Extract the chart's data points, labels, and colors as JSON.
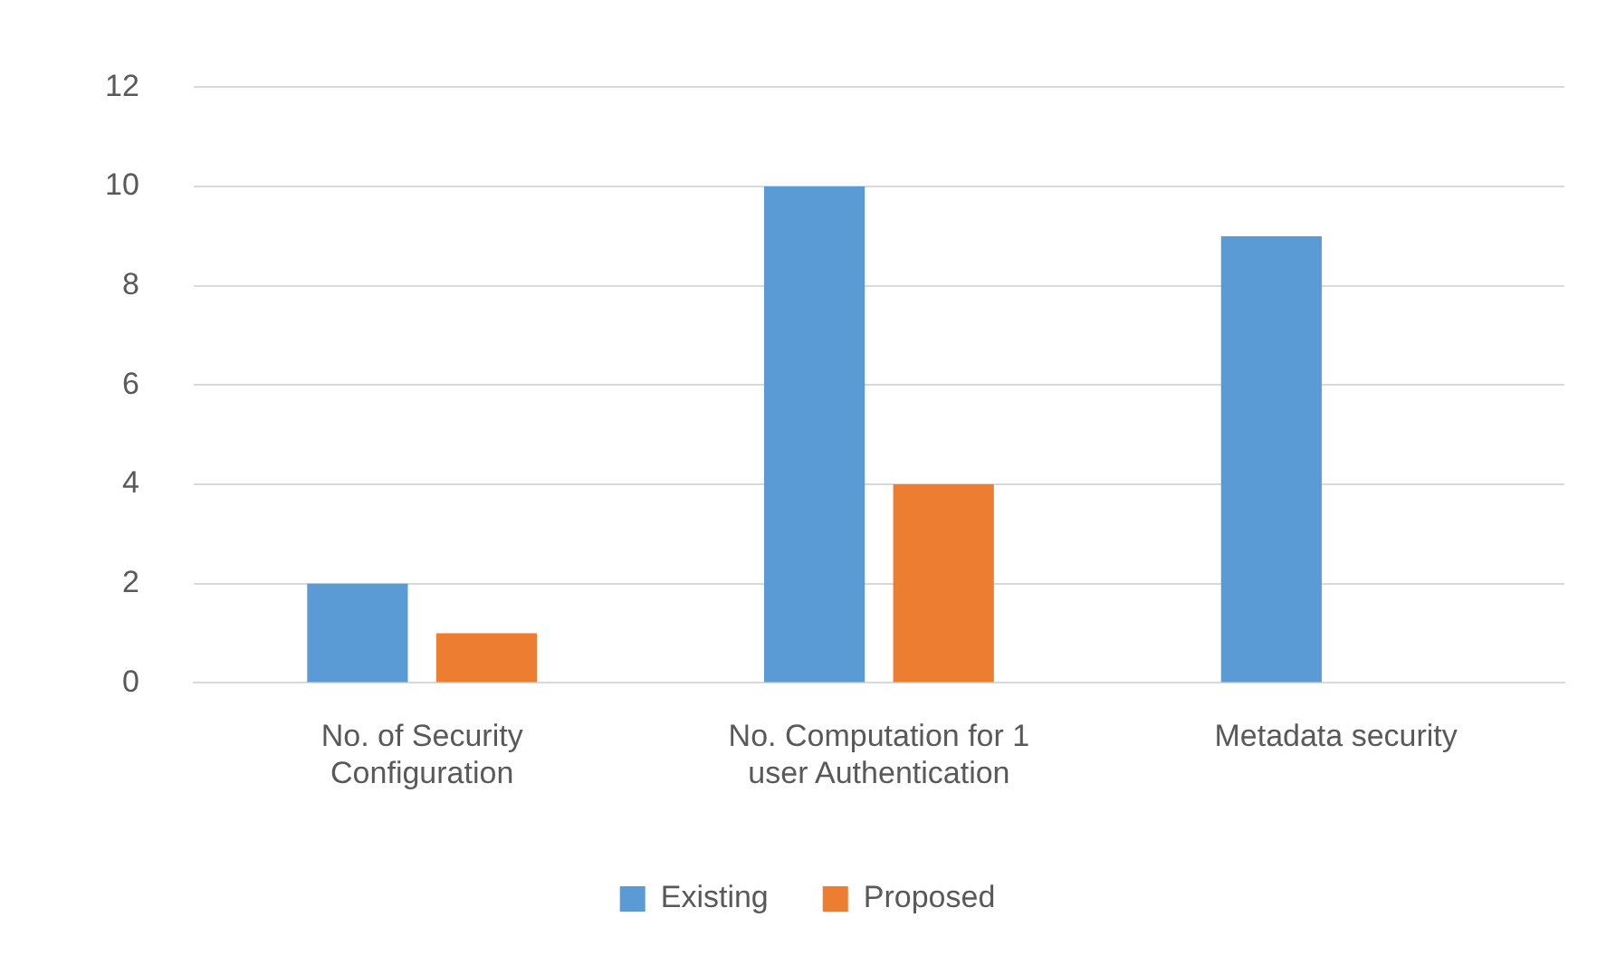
{
  "chart_data": {
    "type": "bar",
    "categories": [
      "No. of Security Configuration",
      "No. Computation for 1 user Authentication",
      "Metadata security"
    ],
    "series": [
      {
        "name": "Existing",
        "color": "#5b9bd5",
        "values": [
          2,
          10,
          9
        ]
      },
      {
        "name": "Proposed",
        "color": "#ed7d31",
        "values": [
          1,
          4,
          0
        ]
      }
    ],
    "ylim": [
      0,
      12
    ],
    "yticks": [
      0,
      2,
      4,
      6,
      8,
      10,
      12
    ],
    "grid": "y",
    "legend": "bottom"
  }
}
